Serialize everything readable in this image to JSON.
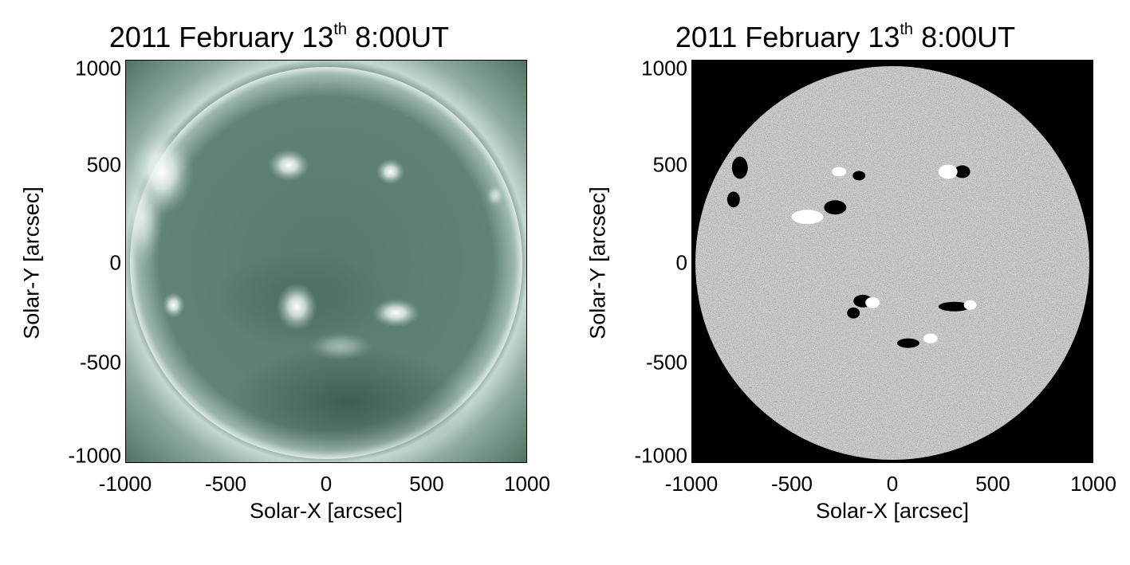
{
  "panels": [
    {
      "title_prefix": "2011 February 13",
      "title_sup": "th",
      "title_suffix": " 8:00UT",
      "ylabel": "Solar-Y [arcsec]",
      "xlabel": "Solar-X [arcsec]",
      "yticks": [
        "1000",
        "500",
        "0",
        "-500",
        "-1000"
      ],
      "xticks": [
        "-1000",
        "-500",
        "0",
        "500",
        "1000"
      ],
      "image_description_colormap": "green-tinted EUV coronal image"
    },
    {
      "title_prefix": "2011 February 13",
      "title_sup": "th",
      "title_suffix": " 8:00UT",
      "ylabel": "Solar-Y [arcsec]",
      "xlabel": "Solar-X [arcsec]",
      "yticks": [
        "1000",
        "500",
        "0",
        "-500",
        "-1000"
      ],
      "xticks": [
        "-1000",
        "-500",
        "0",
        "500",
        "1000"
      ],
      "image_description_colormap": "grayscale magnetogram"
    }
  ],
  "colors": {
    "euv_dark": "#2e4a3c",
    "euv_mid": "#5e8070",
    "euv_bright": "#e8f2ec",
    "mag_bg": "#000000",
    "mag_disk": "#7a7a7a"
  }
}
